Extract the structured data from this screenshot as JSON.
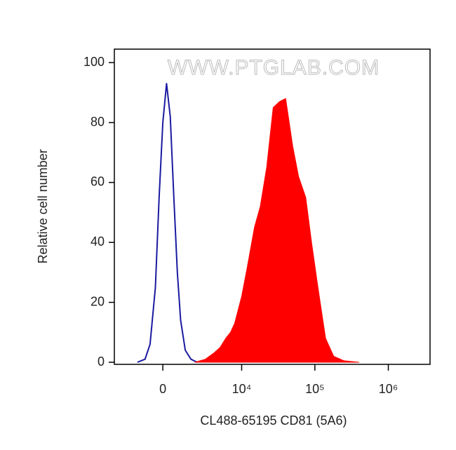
{
  "chart_data": {
    "type": "histogram-overlay",
    "watermark": "WWW.PTGLAB.COM",
    "xlabel": "CL488-65195 CD81 (5A6)",
    "ylabel": "Relative cell number",
    "xscale": "biexponential",
    "xlim": [
      -3700,
      3700000
    ],
    "xticks": [
      0,
      {
        "value": 10000,
        "label": "10⁴"
      },
      {
        "value": 100000,
        "label": "10⁵"
      },
      {
        "value": 1000000,
        "label": "10⁶"
      }
    ],
    "ylim": [
      -0.7,
      104.5
    ],
    "yticks": [
      0,
      20,
      40,
      60,
      80,
      100
    ],
    "series": [
      {
        "color": "#1a1aa0",
        "fill": false,
        "x": [
          -1500,
          -1000,
          -700,
          -400,
          -200,
          0,
          200,
          400,
          600,
          800,
          1000,
          1300,
          1700,
          2200
        ],
        "values": [
          0,
          1,
          6,
          25,
          55,
          80,
          93,
          82,
          55,
          30,
          14,
          4,
          1,
          0
        ]
      },
      {
        "color": "#ff0000",
        "fill": true,
        "x": [
          2000,
          3000,
          4000,
          5000,
          6000,
          7000,
          8000,
          10000,
          12000,
          15000,
          18000,
          22000,
          27000,
          33000,
          40000,
          50000,
          60000,
          75000,
          90000,
          110000,
          140000,
          180000,
          250000,
          400000
        ],
        "values": [
          0,
          1,
          3,
          5,
          8,
          10,
          13,
          22,
          32,
          45,
          52,
          65,
          85,
          87,
          88,
          72,
          62,
          55,
          40,
          25,
          8,
          2,
          0.5,
          0
        ]
      }
    ]
  }
}
